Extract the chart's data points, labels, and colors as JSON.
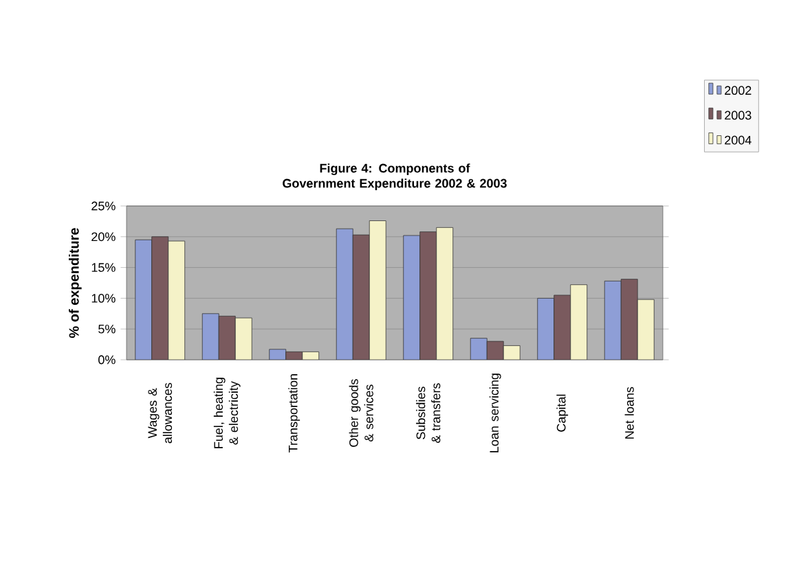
{
  "chart_data": {
    "type": "bar",
    "title": "Figure 4: Components of Government Expenditure 2002 & 2003",
    "ylabel": "% of expenditure",
    "categories": [
      "Wages & allowances",
      "Fuel, heating & electricity",
      "Transportation",
      "Other goods & services",
      "Subsidies & transfers",
      "Loan servicing",
      "Capital",
      "Net loans"
    ],
    "series": [
      {
        "name": "2002",
        "color": "#8e9ed6",
        "values": [
          19.5,
          7.5,
          1.7,
          21.3,
          20.2,
          3.5,
          10.0,
          12.8
        ]
      },
      {
        "name": "2003",
        "color": "#7a5a5e",
        "values": [
          20.0,
          7.1,
          1.3,
          20.3,
          20.8,
          3.0,
          10.5,
          13.1
        ]
      },
      {
        "name": "2004",
        "color": "#f5f2c8",
        "values": [
          19.3,
          6.8,
          1.3,
          22.6,
          21.5,
          2.3,
          12.2,
          9.8
        ]
      }
    ],
    "ylim": [
      0,
      25
    ],
    "yticks": [
      {
        "value": 0,
        "label": "0%"
      },
      {
        "value": 5,
        "label": "5%"
      },
      {
        "value": 10,
        "label": "10%"
      },
      {
        "value": 15,
        "label": "15%"
      },
      {
        "value": 20,
        "label": "20%"
      },
      {
        "value": 25,
        "label": "25%"
      }
    ],
    "grid": "y",
    "legend": "top right"
  }
}
